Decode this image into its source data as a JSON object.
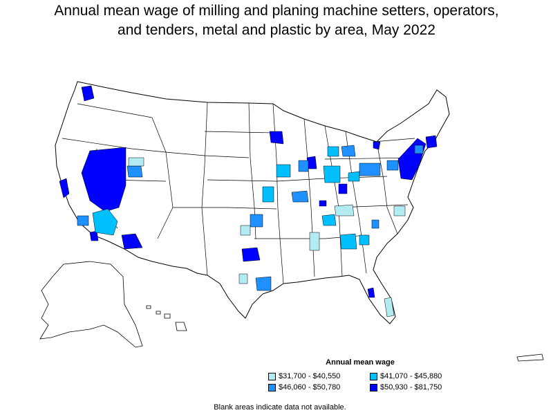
{
  "title": {
    "line1": "Annual mean wage of milling and planing machine setters, operators,",
    "line2": "and tenders, metal and plastic by area, May 2022"
  },
  "legend": {
    "title": "Annual mean wage",
    "items": [
      {
        "label": "$31,700 - $40,550",
        "color": "#b2ebf2"
      },
      {
        "label": "$41,070 - $45,880",
        "color": "#00bfff"
      },
      {
        "label": "$46,060 - $50,780",
        "color": "#1e90ff"
      },
      {
        "label": "$50,930 - $81,750",
        "color": "#0000ff"
      }
    ]
  },
  "note": "Blank areas indicate data not available."
}
